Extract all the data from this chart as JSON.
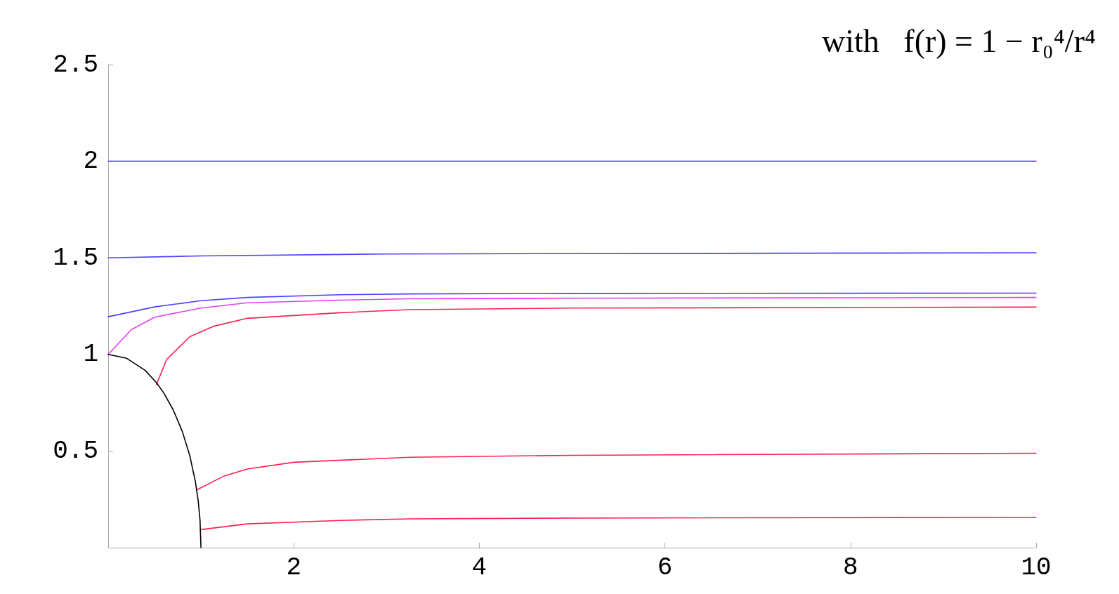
{
  "chart_data": {
    "type": "line",
    "title": "with   f(r) = 1 − r₀⁴/r⁴",
    "xlim": [
      0,
      10
    ],
    "ylim": [
      0,
      2.5
    ],
    "xticks": [
      2,
      4,
      6,
      8,
      10
    ],
    "yticks": [
      0.5,
      1,
      1.5,
      2,
      2.5
    ],
    "grid": false,
    "marker": "none",
    "line_style": "solid",
    "series": [
      {
        "color": "#5040ff",
        "x": [
          0,
          1,
          10
        ],
        "values": [
          2.0,
          2.0,
          2.0
        ]
      },
      {
        "color": "#5040ff",
        "x": [
          0,
          1,
          3,
          10
        ],
        "values": [
          1.5,
          1.51,
          1.52,
          1.526
        ]
      },
      {
        "color": "#5040ff",
        "x": [
          0,
          0.5,
          1,
          1.5,
          2.5,
          3.25,
          5,
          10
        ],
        "values": [
          1.195,
          1.246,
          1.278,
          1.295,
          1.309,
          1.313,
          1.316,
          1.317
        ]
      },
      {
        "color": "#e040f0",
        "x": [
          0,
          0.25,
          0.5,
          1,
          1.5,
          2.5,
          3.25,
          5,
          7.5,
          10
        ],
        "values": [
          1.0,
          1.128,
          1.193,
          1.24,
          1.267,
          1.281,
          1.288,
          1.291,
          1.293,
          1.295
        ]
      },
      {
        "color": "#ff2050",
        "x": [
          0.52,
          0.63,
          0.88,
          1.13,
          1.5,
          2.5,
          3.25,
          5,
          10
        ],
        "values": [
          0.844,
          0.974,
          1.092,
          1.145,
          1.187,
          1.216,
          1.232,
          1.24,
          1.245
        ]
      },
      {
        "color": "#ff2050",
        "x": [
          0.95,
          1.25,
          1.5,
          2,
          3.25,
          5,
          10
        ],
        "values": [
          0.298,
          0.371,
          0.407,
          0.442,
          0.468,
          0.478,
          0.489
        ]
      },
      {
        "color": "#ff2050",
        "x": [
          0.99,
          1.5,
          2.5,
          3.25,
          5,
          10
        ],
        "values": [
          0.093,
          0.123,
          0.141,
          0.149,
          0.153,
          0.157
        ]
      },
      {
        "color": "#000000",
        "x": [
          0,
          0.2,
          0.4,
          0.52,
          0.6,
          0.7,
          0.8,
          0.88,
          0.94,
          0.97,
          0.99,
          1
        ],
        "values": [
          1,
          0.98,
          0.917,
          0.854,
          0.8,
          0.714,
          0.6,
          0.475,
          0.341,
          0.243,
          0.141,
          0
        ]
      }
    ]
  }
}
